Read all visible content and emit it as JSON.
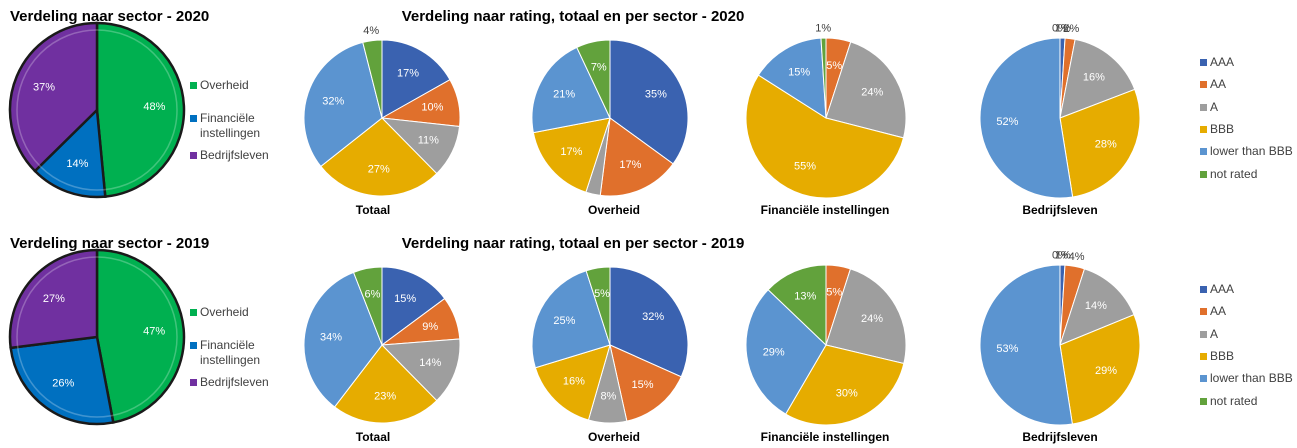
{
  "chart_data": [
    {
      "type": "pie",
      "title": "Verdeling naar sector - 2020",
      "categories": [
        "Overheid",
        "Financiële instellingen",
        "Bedrijfsleven"
      ],
      "values": [
        48,
        14,
        37
      ],
      "value_labels": [
        "48%",
        "14%",
        "37%"
      ],
      "colors": [
        "#00b050",
        "#0070c0",
        "#7030a0"
      ]
    },
    {
      "type": "multi_pie",
      "title": "Verdeling naar rating, totaal en per sector -  2020",
      "categories": [
        "AAA",
        "AA",
        "A",
        "BBB",
        "lower than BBB",
        "not rated"
      ],
      "colors": [
        "#3a62b0",
        "#e0702c",
        "#9e9e9e",
        "#e6ac00",
        "#5b94d0",
        "#62a23c"
      ],
      "pies": [
        {
          "title": "Totaal",
          "values": [
            17,
            10,
            11,
            27,
            32,
            4
          ],
          "value_labels": [
            "17%",
            "10%",
            "11%",
            "27%",
            "32%",
            "4%"
          ]
        },
        {
          "title": "Overheid",
          "values": [
            35,
            17,
            3,
            17,
            21,
            7
          ],
          "value_labels": [
            "35%",
            "17%",
            null,
            "17%",
            "21%",
            "7%"
          ]
        },
        {
          "title": "Financiële instellingen",
          "values": [
            0,
            5,
            24,
            55,
            15,
            1
          ],
          "value_labels": [
            null,
            "5%",
            "24%",
            "55%",
            "15%",
            "1%"
          ]
        },
        {
          "title": "Bedrijfsleven",
          "values": [
            1,
            2,
            16,
            28,
            52,
            0
          ],
          "value_labels": [
            "1%",
            "2%",
            "16%",
            "28%",
            "52%",
            "0%"
          ]
        }
      ]
    },
    {
      "type": "pie",
      "title": "Verdeling naar sector - 2019",
      "categories": [
        "Overheid",
        "Financiële instellingen",
        "Bedrijfsleven"
      ],
      "values": [
        47,
        26,
        27
      ],
      "value_labels": [
        "47%",
        "26%",
        "27%"
      ],
      "colors": [
        "#00b050",
        "#0070c0",
        "#7030a0"
      ]
    },
    {
      "type": "multi_pie",
      "title": "Verdeling naar rating, totaal en per sector -  2019",
      "categories": [
        "AAA",
        "AA",
        "A",
        "BBB",
        "lower than BBB",
        "not rated"
      ],
      "colors": [
        "#3a62b0",
        "#e0702c",
        "#9e9e9e",
        "#e6ac00",
        "#5b94d0",
        "#62a23c"
      ],
      "pies": [
        {
          "title": "Totaal",
          "values": [
            15,
            9,
            14,
            23,
            34,
            6
          ],
          "value_labels": [
            "15%",
            "9%",
            "14%",
            "23%",
            "34%",
            "6%"
          ]
        },
        {
          "title": "Overheid",
          "values": [
            32,
            15,
            8,
            16,
            25,
            5
          ],
          "value_labels": [
            "32%",
            "15%",
            "8%",
            "16%",
            "25%",
            "5%"
          ]
        },
        {
          "title": "Financiële instellingen",
          "values": [
            0,
            5,
            24,
            30,
            29,
            13
          ],
          "value_labels": [
            null,
            "5%",
            "24%",
            "30%",
            "29%",
            "13%"
          ]
        },
        {
          "title": "Bedrijfsleven",
          "values": [
            1,
            4,
            14,
            29,
            53,
            0
          ],
          "value_labels": [
            "1%",
            "4%",
            "14%",
            "29%",
            "53%",
            "0%"
          ]
        }
      ]
    }
  ]
}
